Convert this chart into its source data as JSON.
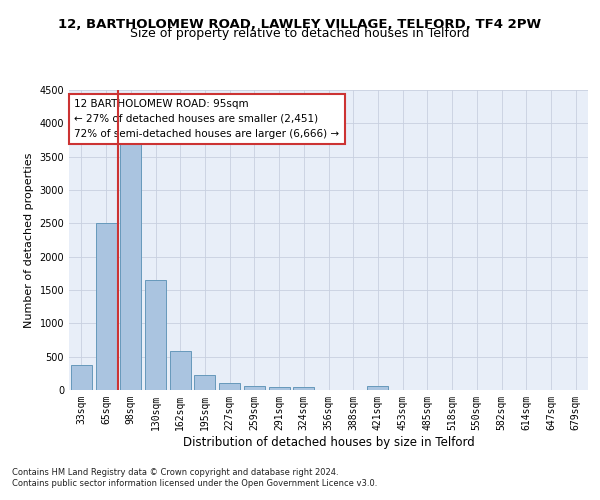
{
  "title1": "12, BARTHOLOMEW ROAD, LAWLEY VILLAGE, TELFORD, TF4 2PW",
  "title2": "Size of property relative to detached houses in Telford",
  "xlabel": "Distribution of detached houses by size in Telford",
  "ylabel": "Number of detached properties",
  "categories": [
    "33sqm",
    "65sqm",
    "98sqm",
    "130sqm",
    "162sqm",
    "195sqm",
    "227sqm",
    "259sqm",
    "291sqm",
    "324sqm",
    "356sqm",
    "388sqm",
    "421sqm",
    "453sqm",
    "485sqm",
    "518sqm",
    "550sqm",
    "582sqm",
    "614sqm",
    "647sqm",
    "679sqm"
  ],
  "values": [
    370,
    2500,
    3750,
    1650,
    590,
    230,
    105,
    65,
    45,
    45,
    0,
    0,
    60,
    0,
    0,
    0,
    0,
    0,
    0,
    0,
    0
  ],
  "bar_color": "#aac4e0",
  "bar_edge_color": "#6699bb",
  "highlight_index": 2,
  "highlight_color": "#cc3333",
  "annotation_text": "12 BARTHOLOMEW ROAD: 95sqm\n← 27% of detached houses are smaller (2,451)\n72% of semi-detached houses are larger (6,666) →",
  "annotation_box_color": "#ffffff",
  "annotation_box_edge": "#cc3333",
  "ylim": [
    0,
    4500
  ],
  "yticks": [
    0,
    500,
    1000,
    1500,
    2000,
    2500,
    3000,
    3500,
    4000,
    4500
  ],
  "bg_color": "#e8eef8",
  "grid_color": "#c8d0e0",
  "footer": "Contains HM Land Registry data © Crown copyright and database right 2024.\nContains public sector information licensed under the Open Government Licence v3.0.",
  "title1_fontsize": 9.5,
  "title2_fontsize": 9,
  "xlabel_fontsize": 8.5,
  "ylabel_fontsize": 8,
  "tick_fontsize": 7,
  "annotation_fontsize": 7.5,
  "footer_fontsize": 6
}
